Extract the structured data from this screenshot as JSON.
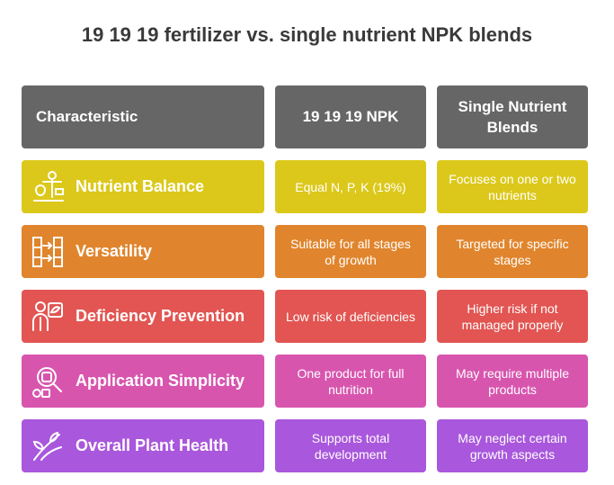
{
  "title": "19 19 19 fertilizer vs. single nutrient NPK blends",
  "headers": {
    "characteristic": "Characteristic",
    "col1": "19 19 19 NPK",
    "col2": "Single Nutrient Blends"
  },
  "colors": {
    "header": "#666666",
    "row1": "#dcc81a",
    "row2": "#e0852d",
    "row3": "#e25552",
    "row4": "#d855ae",
    "row5": "#a957dc"
  },
  "rows": [
    {
      "label": "Nutrient Balance",
      "icon": "scale-fruit-icon",
      "col1": "Equal N, P, K (19%)",
      "col2": "Focuses on one or two nutrients"
    },
    {
      "label": "Versatility",
      "icon": "blocks-arrows-icon",
      "col1": "Suitable for all stages of growth",
      "col2": "Targeted for specific stages"
    },
    {
      "label": "Deficiency Prevention",
      "icon": "person-shield-icon",
      "col1": "Low risk of deficiencies",
      "col2": "Higher risk if not managed properly"
    },
    {
      "label": "Application Simplicity",
      "icon": "magnifier-shapes-icon",
      "col1": "One product for full nutrition",
      "col2": "May require multiple products"
    },
    {
      "label": "Overall Plant Health",
      "icon": "sprout-icon",
      "col1": "Supports total development",
      "col2": "May neglect certain growth aspects"
    }
  ]
}
